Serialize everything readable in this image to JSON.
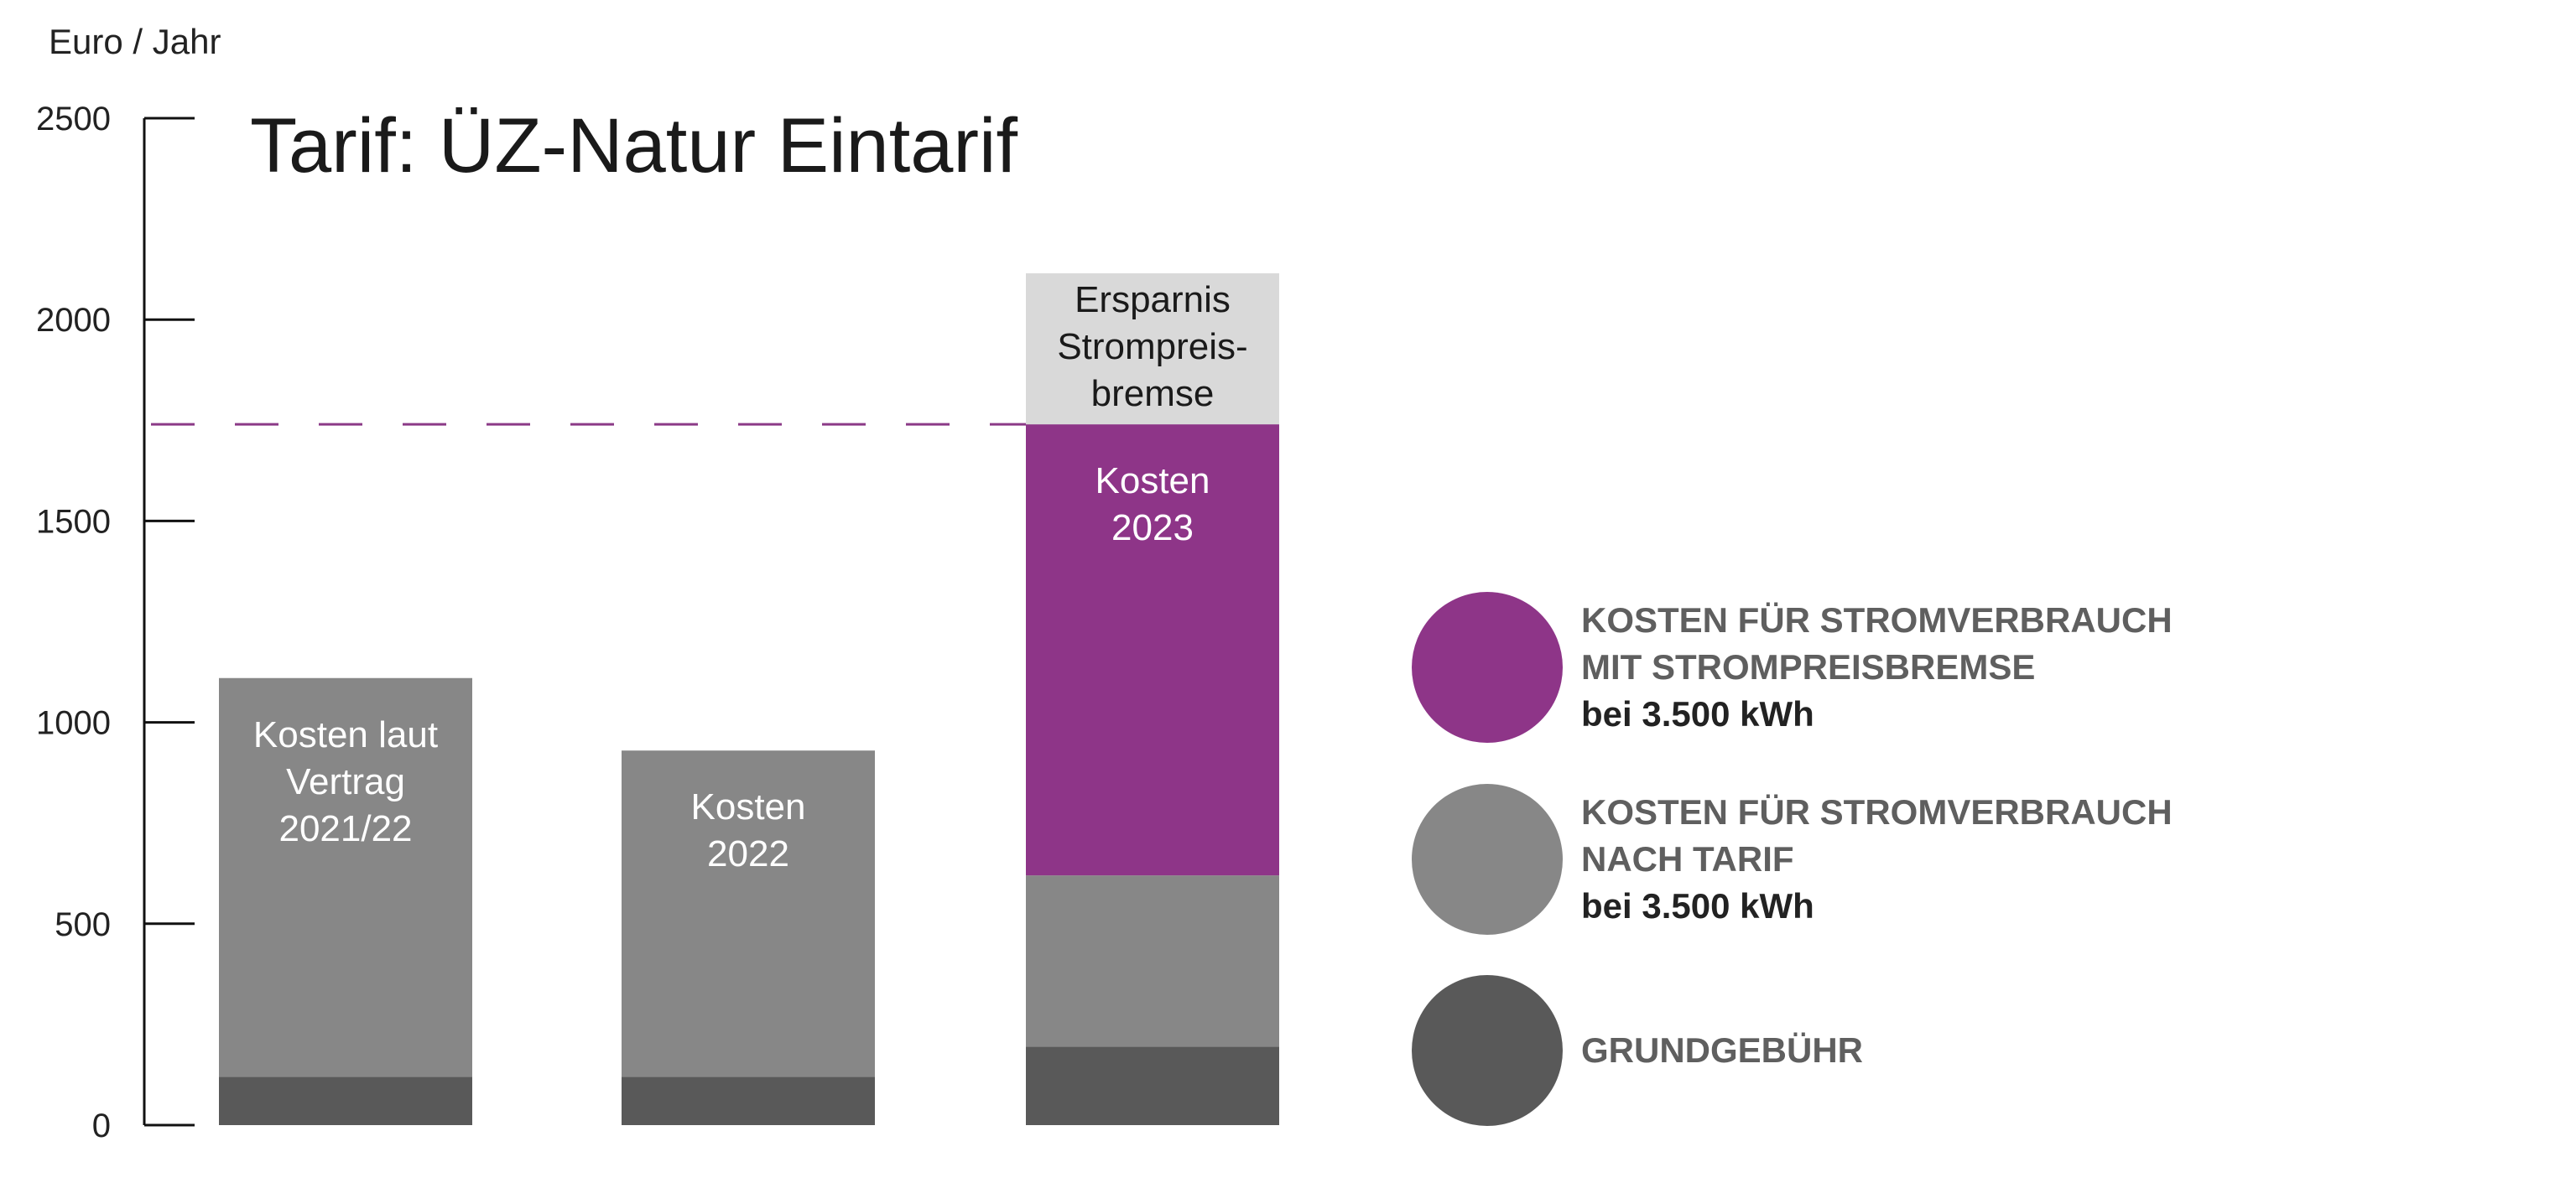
{
  "chart_data": {
    "type": "bar",
    "stacked": true,
    "title": "Tarif: ÜZ-Natur Eintarif",
    "ylabel": "Euro / Jahr",
    "ylim": [
      0,
      2500
    ],
    "yticks": [
      "0",
      "500",
      "1000",
      "1500",
      "2000",
      "2500"
    ],
    "grid": false,
    "legend_position": "right",
    "reference_line": {
      "value": 1740,
      "style": "dashed",
      "color": "#8B3A87"
    },
    "bars": [
      {
        "label": [
          "Kosten laut",
          "Vertrag",
          "2021/22"
        ],
        "segments": [
          {
            "series": "grundgebuehr",
            "value": 120
          },
          {
            "series": "tarif",
            "value": 990
          }
        ]
      },
      {
        "label": [
          "Kosten",
          "2022"
        ],
        "segments": [
          {
            "series": "grundgebuehr",
            "value": 120
          },
          {
            "series": "tarif",
            "value": 810
          }
        ]
      },
      {
        "label": [
          "Kosten",
          "2023"
        ],
        "top_label": [
          "Ersparnis",
          "Strompreis-",
          "bremse"
        ],
        "segments": [
          {
            "series": "grundgebuehr",
            "value": 195
          },
          {
            "series": "tarif",
            "value": 425
          },
          {
            "series": "strompreisbremse",
            "value": 1120
          },
          {
            "series": "ersparnis",
            "value": 375
          }
        ]
      }
    ],
    "series_colors": {
      "grundgebuehr": "#595959",
      "tarif": "#878787",
      "strompreisbremse": "#8E3588",
      "ersparnis": "#D9D9D9"
    }
  },
  "legend": [
    {
      "series": "strompreisbremse",
      "color": "#8E3588",
      "lines": [
        "KOSTEN FÜR STROMVERBRAUCH",
        "MIT STROMPREISBREMSE"
      ],
      "bold_line": "bei 3.500 kWh"
    },
    {
      "series": "tarif",
      "color": "#878787",
      "lines": [
        "KOSTEN FÜR STROMVERBRAUCH",
        "NACH TARIF"
      ],
      "bold_line": "bei 3.500 kWh"
    },
    {
      "series": "grundgebuehr",
      "color": "#595959",
      "lines": [
        "GRUNDGEBÜHR"
      ],
      "bold_line": ""
    }
  ]
}
